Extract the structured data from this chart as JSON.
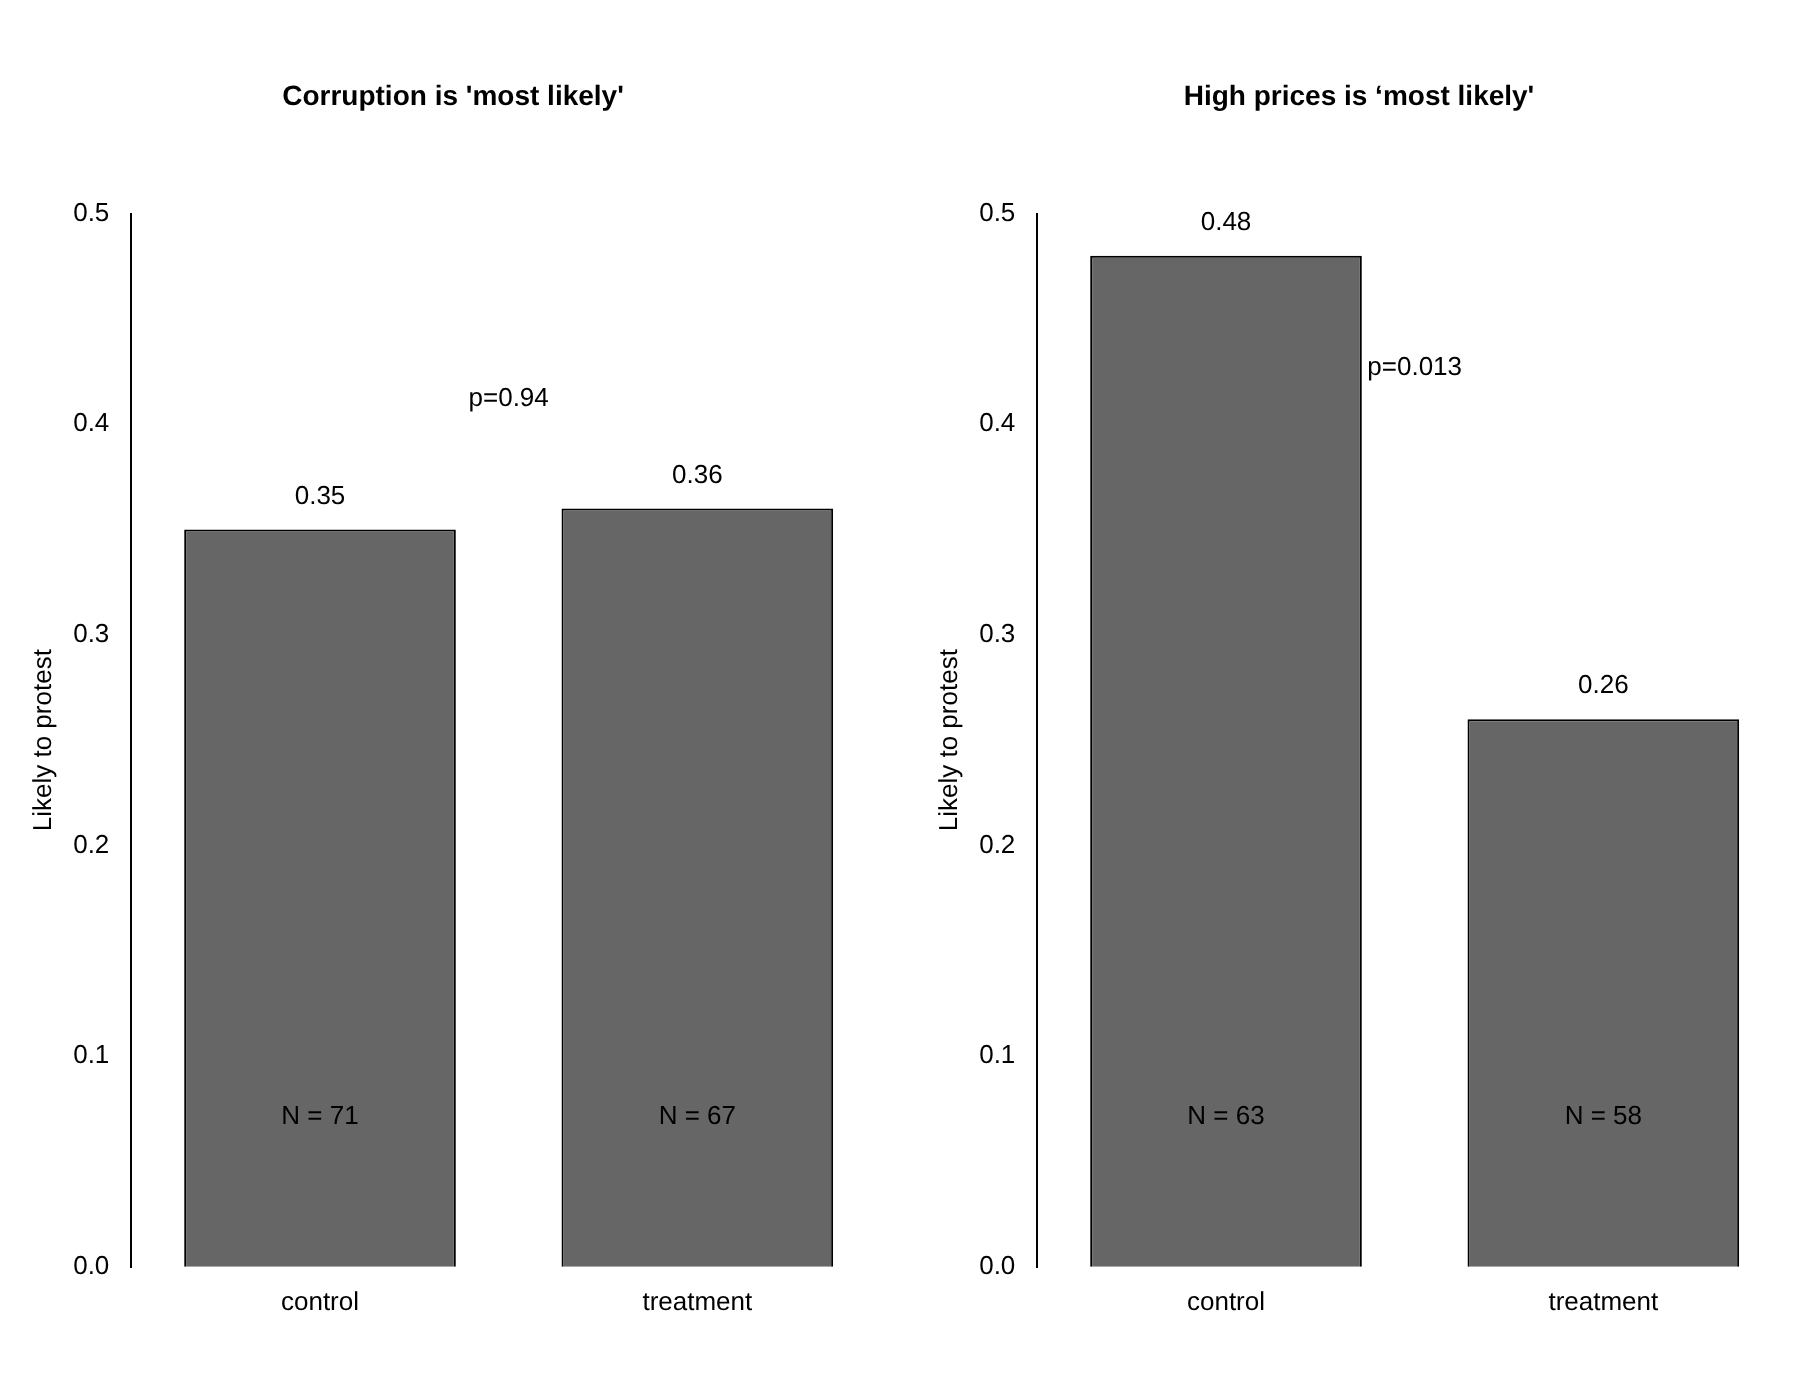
{
  "chart_data": [
    {
      "type": "bar",
      "title": "Corruption is 'most likely'",
      "ylabel": "Likely to protest",
      "categories": [
        "control",
        "treatment"
      ],
      "values": [
        0.35,
        0.36
      ],
      "color": "#666666",
      "ylim": [
        0,
        0.5
      ],
      "yticks": [
        {
          "value": 0,
          "label": "0.0"
        },
        0.1,
        0.2,
        0.3,
        0.4,
        0.5
      ],
      "data_labels": true,
      "grid": false,
      "legend": false,
      "annotations": [
        "p=0.94",
        "N = 71",
        "N = 67"
      ]
    },
    {
      "type": "bar",
      "title": "High prices is ‘most likely'",
      "ylabel": "Likely to protest",
      "categories": [
        "control",
        "treatment"
      ],
      "values": [
        0.48,
        0.26
      ],
      "color": "#666666",
      "ylim": [
        0,
        0.5
      ],
      "yticks": [
        {
          "value": 0,
          "label": "0.0"
        },
        0.1,
        0.2,
        0.3,
        0.4,
        0.5
      ],
      "data_labels": true,
      "grid": false,
      "legend": false,
      "annotations": [
        "p=0.013",
        "N = 63",
        "N = 58"
      ]
    }
  ]
}
